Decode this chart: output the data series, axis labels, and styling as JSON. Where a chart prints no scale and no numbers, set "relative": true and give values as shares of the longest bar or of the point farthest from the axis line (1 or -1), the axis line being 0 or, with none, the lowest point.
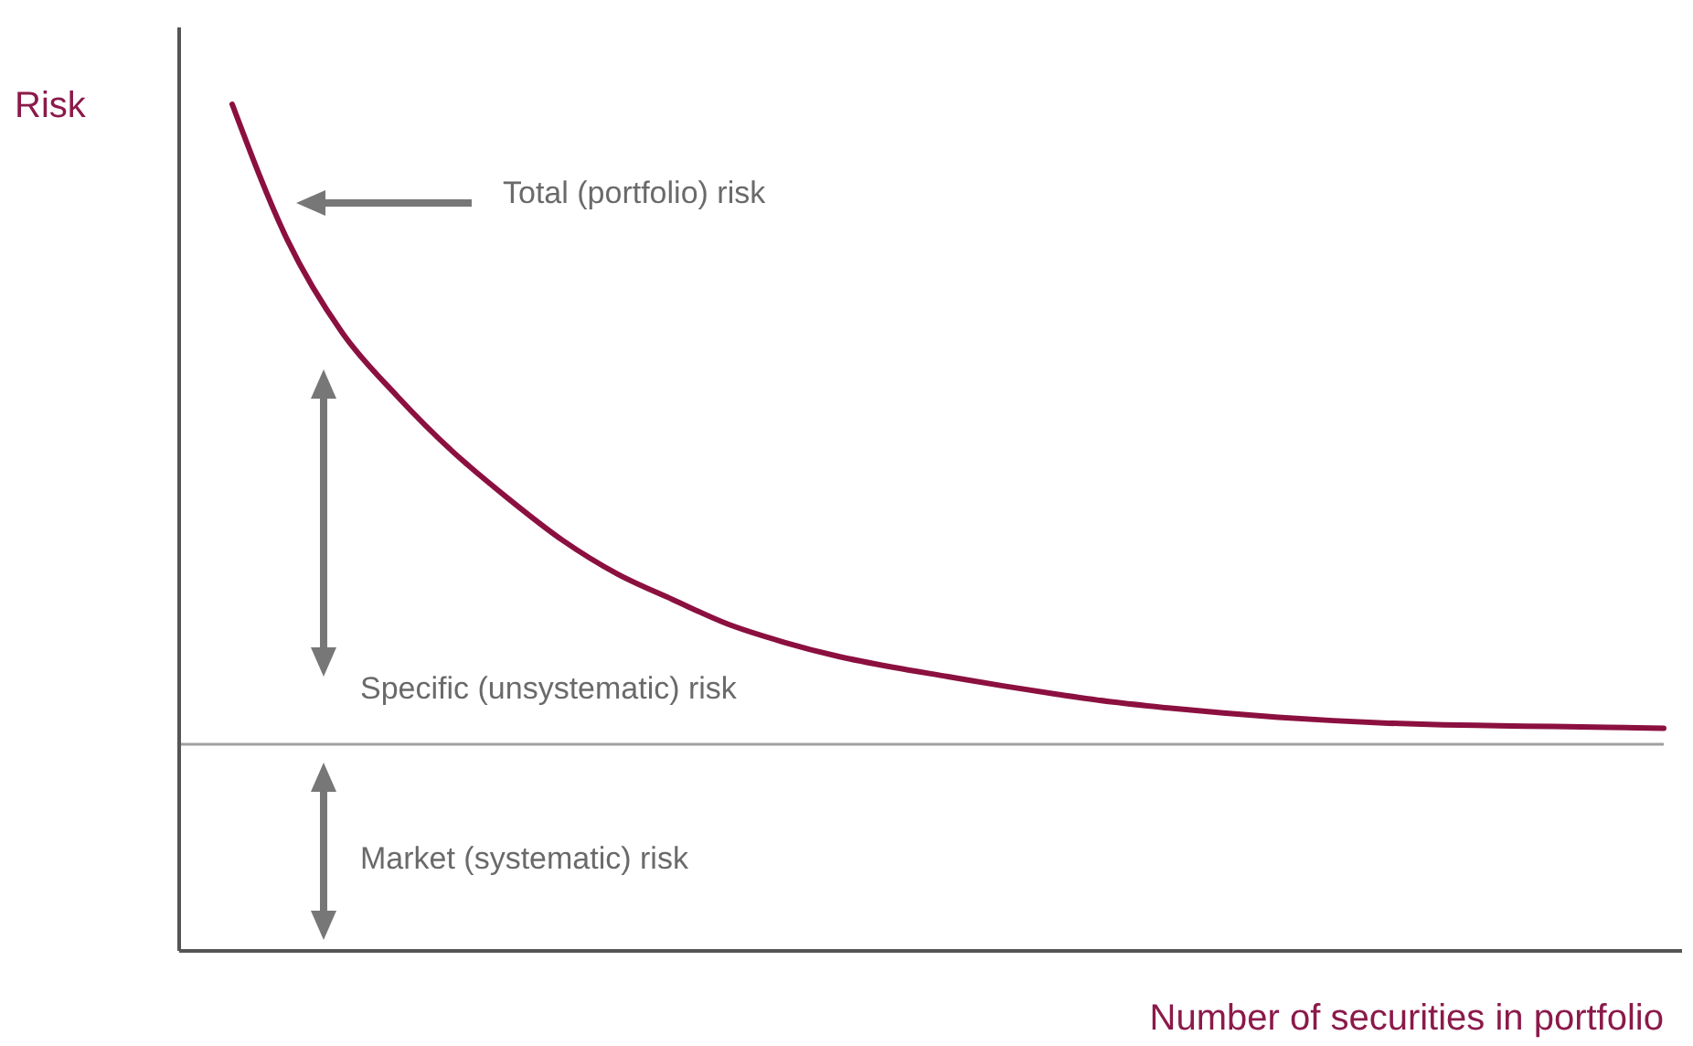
{
  "chart_data": {
    "type": "line",
    "relative": true,
    "ylabel": "Risk",
    "xlabel": "Number of securities in portfolio",
    "categories": [
      null,
      null,
      null,
      null,
      null,
      null,
      null,
      null,
      null,
      null,
      null,
      null,
      null,
      null,
      null,
      null,
      null,
      null,
      null,
      null,
      null,
      null,
      null,
      null,
      null,
      null,
      null
    ],
    "series": [
      {
        "color": "#8b1040",
        "values": [
          1.0,
          0.84,
          0.73,
          0.655,
          0.59,
          0.535,
          0.485,
          0.445,
          0.415,
          0.386,
          0.365,
          0.348,
          0.335,
          0.324,
          0.313,
          0.303,
          0.294,
          0.287,
          0.281,
          0.276,
          0.272,
          0.269,
          0.267,
          0.266,
          0.265,
          0.264,
          0.263
        ]
      }
    ],
    "ref_lines": [
      {
        "axis": "y",
        "value": 0.244,
        "color": "#a0a0a0"
      }
    ],
    "annotations": [
      "Total (portfolio) risk",
      "Specific (unsystematic) risk",
      "Market (systematic) risk"
    ],
    "marker": "none",
    "line_style": "solid",
    "grid": false
  }
}
